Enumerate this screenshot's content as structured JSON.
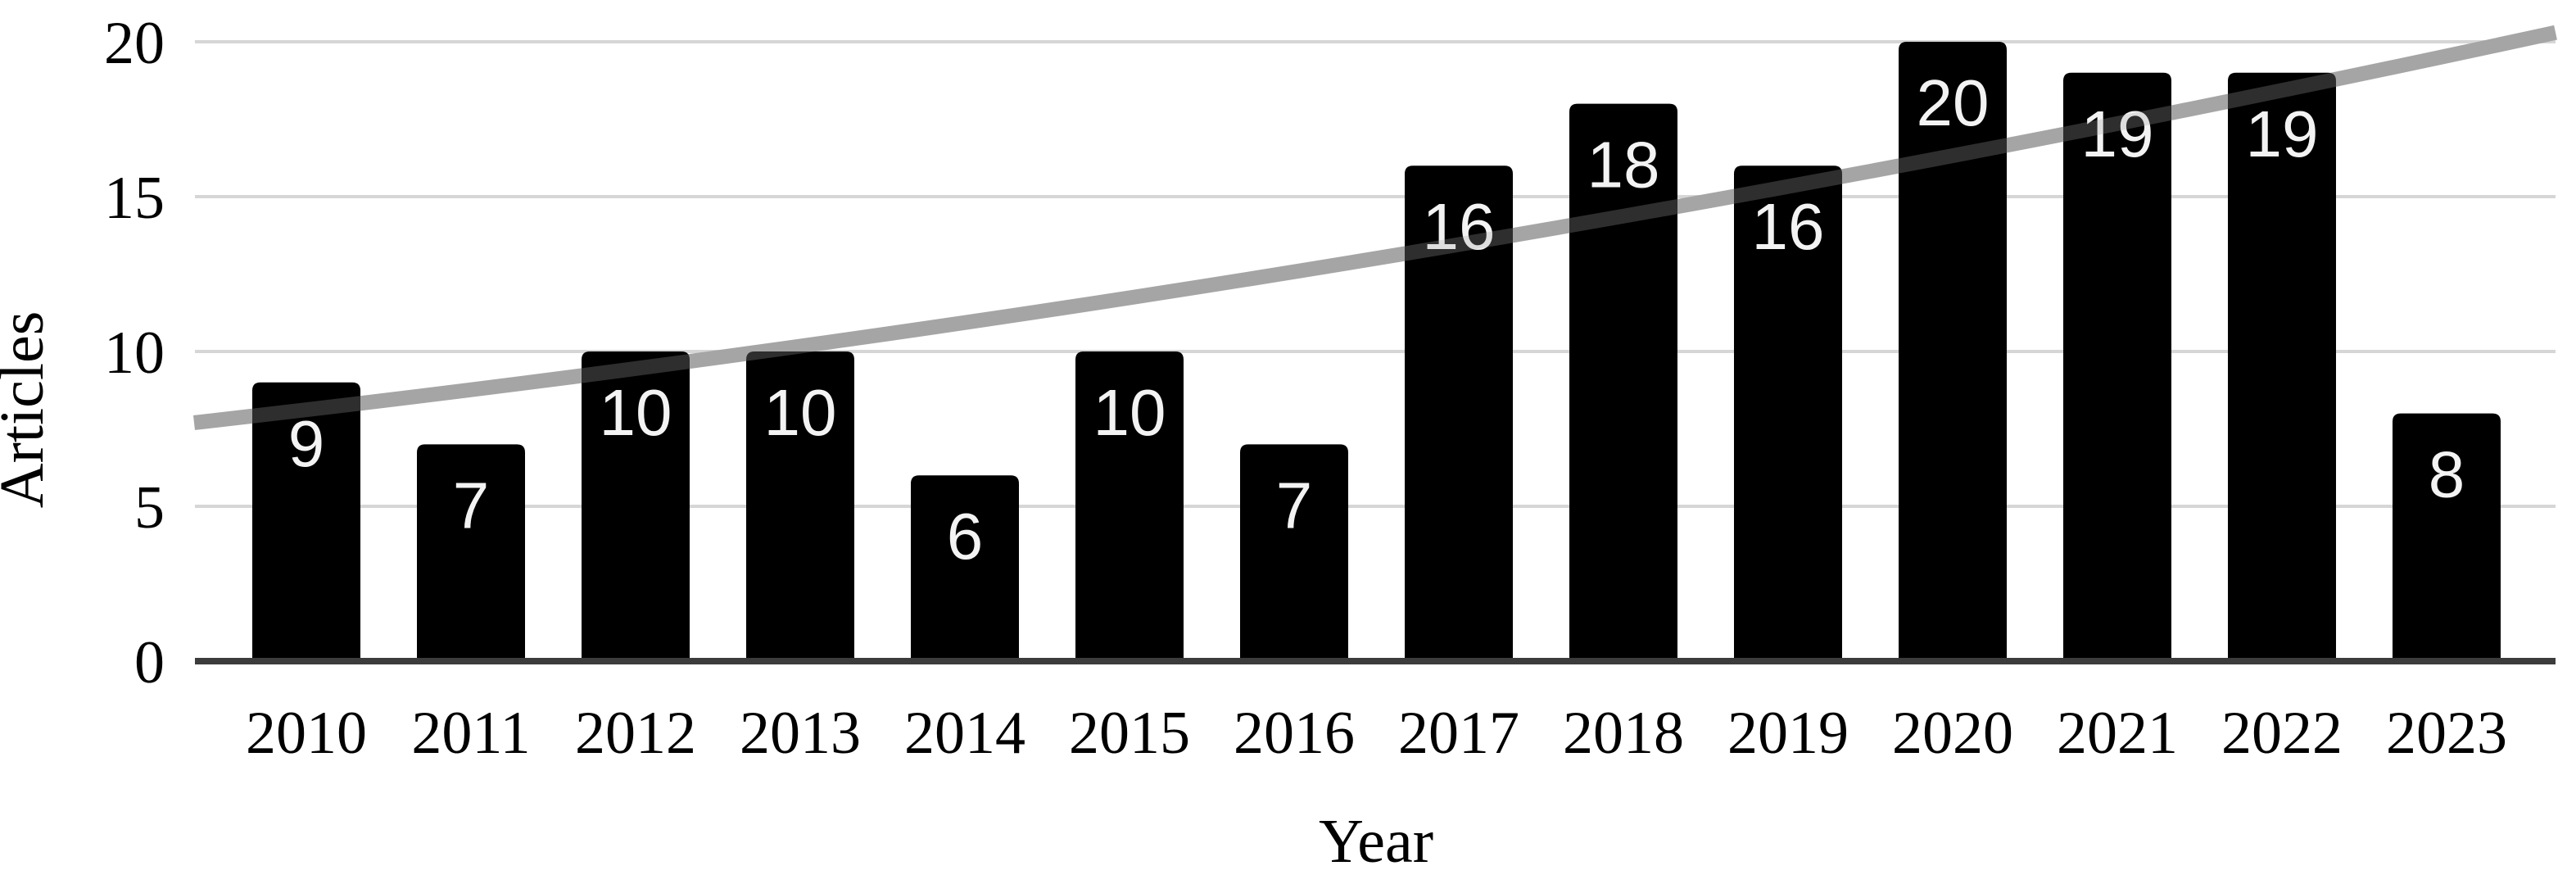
{
  "chart_data": {
    "type": "bar",
    "title": "",
    "xlabel": "Year",
    "ylabel": "Articles",
    "categories": [
      "2010",
      "2011",
      "2012",
      "2013",
      "2014",
      "2015",
      "2016",
      "2017",
      "2018",
      "2019",
      "2020",
      "2021",
      "2022",
      "2023"
    ],
    "values": [
      9,
      7,
      10,
      10,
      6,
      10,
      7,
      16,
      18,
      16,
      20,
      19,
      19,
      8
    ],
    "data_labels_shown": true,
    "yticks": [
      "0",
      "5",
      "10",
      "15",
      "20"
    ],
    "ytick_values": [
      0,
      5,
      10,
      15,
      20
    ],
    "ylim": [
      0,
      20
    ],
    "grid": "horizontal gridlines at 5, 10, 15, 20",
    "legend": "none",
    "trendline": {
      "shape": "smooth rising curve (exponential-style trend)",
      "start_value": 7.7,
      "mid_value": 13.0,
      "end_value": 20.3,
      "values_at_categories": [
        8.1,
        8.8,
        9.4,
        10.1,
        10.9,
        11.7,
        12.5,
        13.4,
        14.3,
        15.3,
        16.3,
        17.3,
        18.4,
        19.5
      ]
    },
    "colors": {
      "background": "#ffffff",
      "bar": "#000000",
      "bar_label": "#f3f3f3",
      "gridline": "#d6d6d6",
      "axis_line": "#3c3c3c",
      "trendline": "#a6a6a6",
      "text": "#000000"
    }
  }
}
